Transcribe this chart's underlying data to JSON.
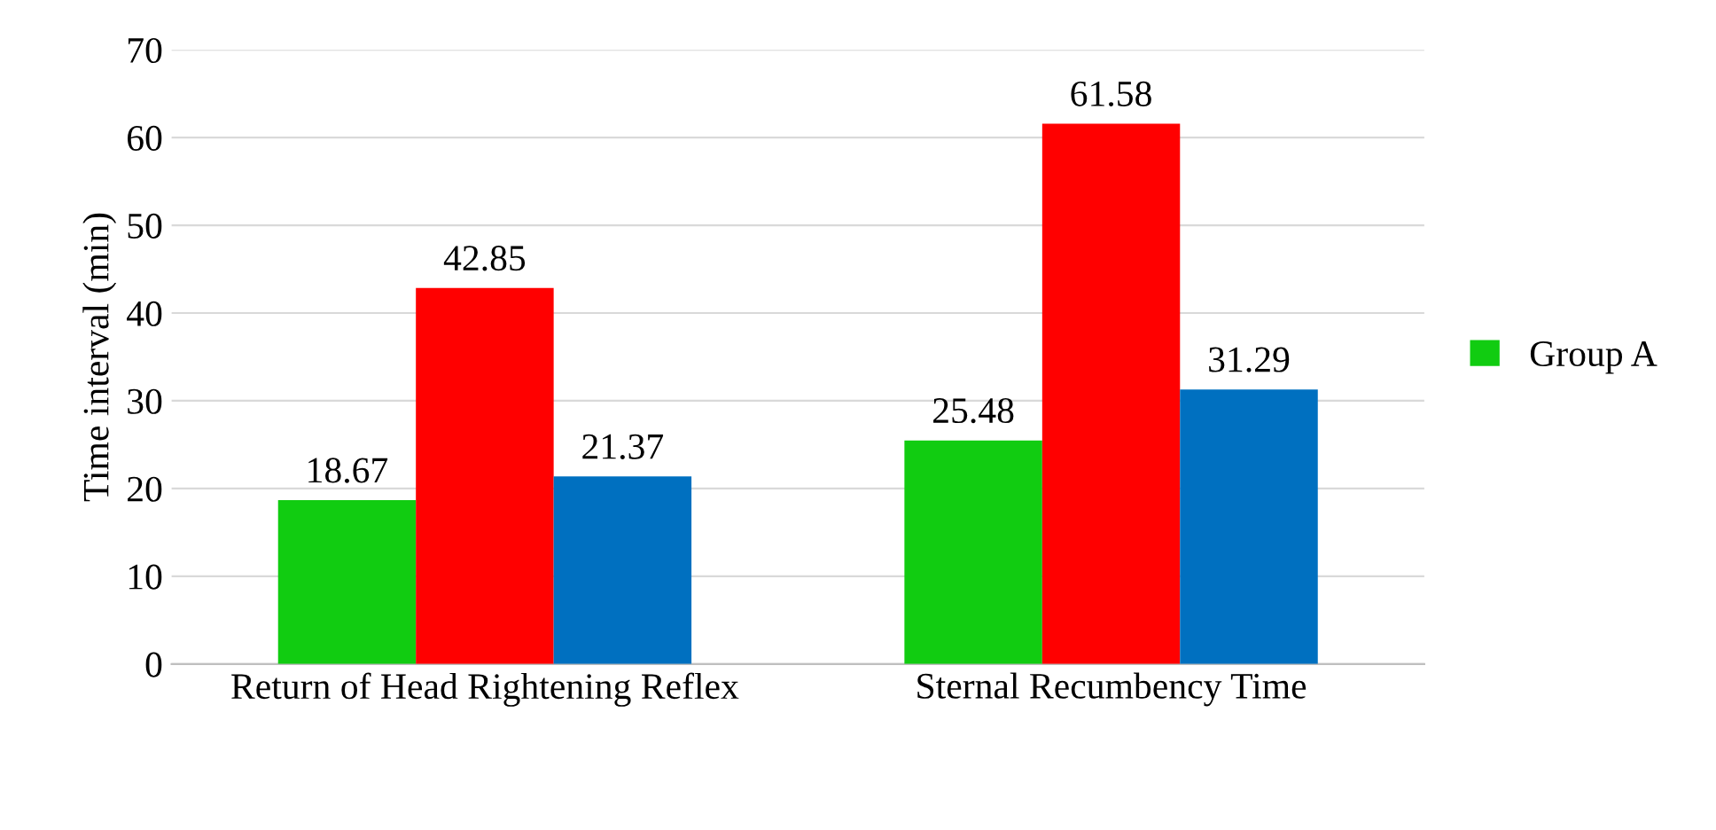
{
  "chart_data": {
    "type": "bar",
    "ylabel": "Time interval (min)",
    "categories": [
      "Return of Head Rightening Reflex",
      "Sternal Recumbency Time"
    ],
    "series": [
      {
        "name": "Group A",
        "color": "#11cc11",
        "values": [
          18.67,
          25.48
        ]
      },
      {
        "color": "#ff0000",
        "values": [
          42.85,
          61.58
        ]
      },
      {
        "color": "#0070c0",
        "values": [
          21.37,
          31.29
        ]
      }
    ],
    "ylim": [
      0,
      70
    ],
    "yticks": [
      0,
      10,
      20,
      30,
      40,
      50,
      60,
      70
    ],
    "grid": "y",
    "legend": "right",
    "data_labels": true
  }
}
